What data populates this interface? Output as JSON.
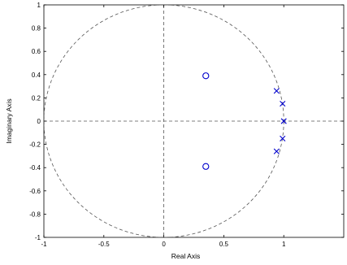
{
  "chart_data": {
    "type": "scatter",
    "title": "",
    "xlabel": "Real Axis",
    "ylabel": "Imaginary Axis",
    "xlim": [
      -1,
      1.5
    ],
    "ylim": [
      -1,
      1
    ],
    "grid": false,
    "x_ticks": [
      -1,
      -0.5,
      0,
      0.5,
      1
    ],
    "x_tick_labels": [
      "-1",
      "-0.5",
      "0",
      "0.5",
      "1"
    ],
    "y_ticks": [
      1,
      0.8,
      0.6,
      0.4,
      0.2,
      0,
      -0.2,
      -0.4,
      -0.6,
      -0.8,
      -1
    ],
    "y_tick_labels": [
      "1",
      "0.8",
      "0.6",
      "0.4",
      "0.2",
      "0",
      "-0.2",
      "-0.4",
      "-0.6",
      "-0.8",
      "-1"
    ],
    "unit_circle": {
      "center": [
        0,
        0
      ],
      "radius": 1,
      "style": "dashed"
    },
    "reference_lines": {
      "x": 0,
      "y": 0,
      "style": "dashed"
    },
    "marker_color": "#0000cc",
    "zeros": [
      {
        "x": 0.35,
        "y": 0.39
      },
      {
        "x": 0.35,
        "y": -0.39
      }
    ],
    "poles": [
      {
        "x": 0.94,
        "y": 0.26
      },
      {
        "x": 0.99,
        "y": 0.15
      },
      {
        "x": 1.0,
        "y": 0.0
      },
      {
        "x": 0.99,
        "y": -0.15
      },
      {
        "x": 0.94,
        "y": -0.26
      }
    ]
  }
}
